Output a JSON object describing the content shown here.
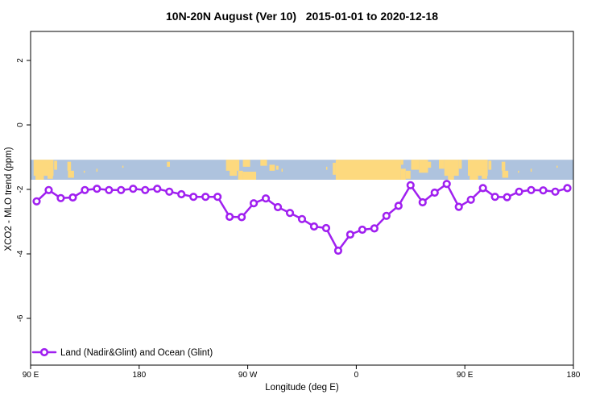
{
  "title": "10N-20N August (Ver 10)   2015-01-01 to 2020-12-18",
  "colors": {
    "line": "#A020F0",
    "marker_fill": "#FFFFFF",
    "ocean_band": "#AEC3DE",
    "land_band": "#FDD97E",
    "axis": "#000000",
    "background": "#FFFFFF"
  },
  "legend": {
    "label": "Land (Nadir&Glint) and Ocean (Glint)",
    "position": "bottom-left",
    "marker": "open-circle-on-line"
  },
  "chart_data": {
    "type": "line",
    "title": "10N-20N August (Ver 10)   2015-01-01 to 2020-12-18",
    "xlabel": "Longitude (deg E)",
    "ylabel": "XCO2 - MLO trend (ppm)",
    "xlim": [
      90,
      540
    ],
    "ylim": [
      -7.45,
      2.9
    ],
    "grid": false,
    "x_ticks": [
      {
        "value": 90,
        "label": "90 E"
      },
      {
        "value": 180,
        "label": "180"
      },
      {
        "value": 270,
        "label": "90 W"
      },
      {
        "value": 360,
        "label": "0"
      },
      {
        "value": 450,
        "label": "90 E"
      },
      {
        "value": 540,
        "label": "180"
      }
    ],
    "y_ticks": [
      {
        "value": 2,
        "label": "2"
      },
      {
        "value": 0,
        "label": "0"
      },
      {
        "value": -2,
        "label": "-2"
      },
      {
        "value": -4,
        "label": "-4"
      },
      {
        "value": -6,
        "label": "-6"
      }
    ],
    "series": [
      {
        "name": "Land (Nadir&Glint) and Ocean (Glint)",
        "color": "#A020F0",
        "marker": "open-circle",
        "x": [
          95,
          105,
          115,
          125,
          135,
          145,
          155,
          165,
          175,
          185,
          195,
          205,
          215,
          225,
          235,
          245,
          255,
          265,
          275,
          285,
          295,
          305,
          315,
          325,
          335,
          345,
          355,
          365,
          375,
          385,
          395,
          405,
          415,
          425,
          435,
          445,
          455,
          465,
          475,
          485,
          495,
          505,
          515,
          525,
          535
        ],
        "y": [
          -2.37,
          -2.02,
          -2.27,
          -2.25,
          -2.02,
          -1.98,
          -2.02,
          -2.02,
          -1.98,
          -2.02,
          -1.98,
          -2.07,
          -2.15,
          -2.23,
          -2.23,
          -2.23,
          -2.85,
          -2.86,
          -2.43,
          -2.28,
          -2.55,
          -2.73,
          -2.92,
          -3.15,
          -3.2,
          -3.9,
          -3.4,
          -3.25,
          -3.21,
          -2.82,
          -2.51,
          -1.87,
          -2.4,
          -2.1,
          -1.83,
          -2.54,
          -2.32,
          -1.96,
          -2.23,
          -2.24,
          -2.07,
          -2.02,
          -2.03,
          -2.07,
          -1.96
        ]
      }
    ],
    "map_band": {
      "description": "10N-20N world land/ocean strip",
      "y_top": -1.08,
      "y_bottom": -1.7,
      "ocean_color": "#AEC3DE",
      "land_color": "#FDD97E",
      "land_segments": [
        {
          "x0": 92.5,
          "x1": 109,
          "t": 0.0,
          "b": 0.8
        },
        {
          "x0": 94,
          "x1": 101,
          "t": 0.55,
          "b": 1.0
        },
        {
          "x0": 104,
          "x1": 108.5,
          "t": 0.45,
          "b": 0.95
        },
        {
          "x0": 109.5,
          "x1": 112,
          "t": 0.05,
          "b": 0.5
        },
        {
          "x0": 120.5,
          "x1": 123.5,
          "t": 0.1,
          "b": 0.55
        },
        {
          "x0": 121,
          "x1": 126,
          "t": 0.55,
          "b": 0.9
        },
        {
          "x0": 134,
          "x1": 135,
          "t": 0.55,
          "b": 0.65
        },
        {
          "x0": 144.5,
          "x1": 145.5,
          "t": 0.45,
          "b": 0.6
        },
        {
          "x0": 166,
          "x1": 167,
          "t": 0.3,
          "b": 0.4
        },
        {
          "x0": 203,
          "x1": 205.5,
          "t": 0.1,
          "b": 0.35
        },
        {
          "x0": 252,
          "x1": 263,
          "t": 0.0,
          "b": 0.55
        },
        {
          "x0": 255,
          "x1": 261,
          "t": 0.5,
          "b": 0.8
        },
        {
          "x0": 262,
          "x1": 266,
          "t": 0.55,
          "b": 1.0
        },
        {
          "x0": 266,
          "x1": 272,
          "t": 0.0,
          "b": 0.35
        },
        {
          "x0": 266,
          "x1": 277,
          "t": 0.6,
          "b": 1.0
        },
        {
          "x0": 280.5,
          "x1": 286,
          "t": 0.0,
          "b": 0.3
        },
        {
          "x0": 288,
          "x1": 292.5,
          "t": 0.25,
          "b": 0.55
        },
        {
          "x0": 293.5,
          "x1": 295.5,
          "t": 0.3,
          "b": 0.5
        },
        {
          "x0": 298,
          "x1": 299,
          "t": 0.45,
          "b": 0.6
        },
        {
          "x0": 335,
          "x1": 336,
          "t": 0.35,
          "b": 0.5
        },
        {
          "x0": 340.5,
          "x1": 343,
          "t": 0.15,
          "b": 0.75
        },
        {
          "x0": 343,
          "x1": 397,
          "t": 0.0,
          "b": 1.0
        },
        {
          "x0": 397,
          "x1": 399,
          "t": 0.0,
          "b": 0.25
        },
        {
          "x0": 397,
          "x1": 401,
          "t": 0.45,
          "b": 1.0
        },
        {
          "x0": 401,
          "x1": 405,
          "t": 0.55,
          "b": 0.95
        },
        {
          "x0": 405.5,
          "x1": 412,
          "t": 0.0,
          "b": 0.5
        },
        {
          "x0": 412,
          "x1": 419.5,
          "t": 0.0,
          "b": 0.65
        },
        {
          "x0": 419.5,
          "x1": 422,
          "t": 0.1,
          "b": 0.4
        },
        {
          "x0": 428.5,
          "x1": 433,
          "t": 0.0,
          "b": 0.45
        },
        {
          "x0": 433,
          "x1": 445,
          "t": 0.0,
          "b": 0.8
        },
        {
          "x0": 436,
          "x1": 441,
          "t": 0.8,
          "b": 1.0
        },
        {
          "x0": 445,
          "x1": 447.5,
          "t": 0.0,
          "b": 0.45
        },
        {
          "x0": 452.5,
          "x1": 469,
          "t": 0.0,
          "b": 0.8
        },
        {
          "x0": 454,
          "x1": 461,
          "t": 0.55,
          "b": 1.0
        },
        {
          "x0": 464,
          "x1": 468.5,
          "t": 0.45,
          "b": 0.95
        },
        {
          "x0": 469.5,
          "x1": 472,
          "t": 0.05,
          "b": 0.5
        },
        {
          "x0": 480.5,
          "x1": 483.5,
          "t": 0.1,
          "b": 0.55
        },
        {
          "x0": 481,
          "x1": 486,
          "t": 0.55,
          "b": 0.9
        },
        {
          "x0": 494,
          "x1": 495,
          "t": 0.55,
          "b": 0.65
        },
        {
          "x0": 504.5,
          "x1": 505.5,
          "t": 0.45,
          "b": 0.6
        },
        {
          "x0": 526,
          "x1": 527,
          "t": 0.3,
          "b": 0.4
        }
      ]
    },
    "legend": {
      "label": "Land (Nadir&Glint) and Ocean (Glint)",
      "position": "bottom-left"
    }
  }
}
